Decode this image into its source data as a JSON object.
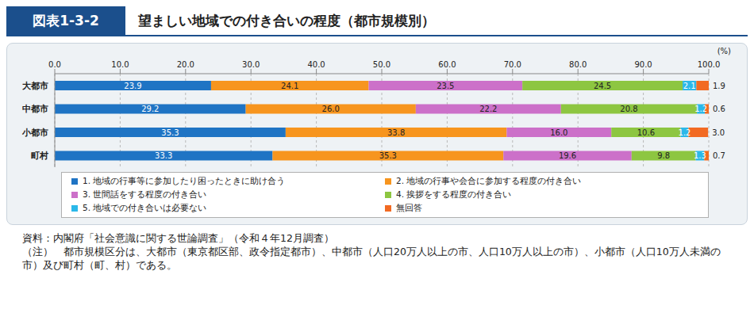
{
  "figure_number": "図表1-3-2",
  "chart_data": {
    "type": "bar",
    "title": "望ましい地域での付き合いの程度（都市規模別）",
    "orientation": "horizontal",
    "stacked": true,
    "data_labels": true,
    "grid": true,
    "legend": "bottom",
    "xlabel": "(%)",
    "categories": [
      "大都市",
      "中都市",
      "小都市",
      "町村"
    ],
    "xlim": [
      0,
      100
    ],
    "xticks": [
      {
        "value": 0,
        "label": "0.0"
      },
      {
        "value": 10,
        "label": "10.0"
      },
      {
        "value": 20,
        "label": "20.0"
      },
      {
        "value": 30,
        "label": "30.0"
      },
      {
        "value": 40,
        "label": "40.0"
      },
      {
        "value": 50,
        "label": "50.0"
      },
      {
        "value": 60,
        "label": "60.0"
      },
      {
        "value": 70,
        "label": "70.0"
      },
      {
        "value": 80,
        "label": "80.0"
      },
      {
        "value": 90,
        "label": "90.0"
      },
      {
        "value": 100,
        "label": "100.0"
      }
    ],
    "series": [
      {
        "name": "1. 地域の行事等に参加したり困ったときに助け合う",
        "color": "#1f74c4",
        "values": [
          23.9,
          29.2,
          35.3,
          33.3
        ],
        "value_labels": [
          "23.9",
          "29.2",
          "35.3",
          "33.3"
        ]
      },
      {
        "name": "2. 地域の行事や会合に参加する程度の付き合い",
        "color": "#f7951e",
        "values": [
          24.1,
          26.0,
          33.8,
          35.3
        ],
        "value_labels": [
          "24.1",
          "26.0",
          "33.8",
          "35.3"
        ]
      },
      {
        "name": "3. 世間話をする程度の付き合い",
        "color": "#cc70c9",
        "values": [
          23.5,
          22.2,
          16.0,
          19.6
        ],
        "value_labels": [
          "23.5",
          "22.2",
          "16.0",
          "19.6"
        ]
      },
      {
        "name": "4. 挨拶をする程度の付き合い",
        "color": "#8dc641",
        "values": [
          24.5,
          20.8,
          10.6,
          9.8
        ],
        "value_labels": [
          "24.5",
          "20.8",
          "10.6",
          "9.8"
        ]
      },
      {
        "name": "5. 地域での付き合いは必要ない",
        "color": "#2bb8e9",
        "values": [
          2.1,
          1.2,
          1.2,
          1.3
        ],
        "value_labels": [
          "2.1",
          "1.2",
          "1.2",
          "1.3"
        ]
      },
      {
        "name": "無回答",
        "color": "#f26a22",
        "values": [
          1.9,
          0.6,
          3.0,
          0.7
        ],
        "value_labels": [
          "1.9",
          "0.6",
          "3.0",
          "0.7"
        ]
      }
    ]
  },
  "source": "資料：内閣府「社会意識に関する世論調査」（令和４年12月調査）",
  "note": "（注）　都市規模区分は、大都市（東京都区部、政令指定都市）、中都市（人口20万人以上の市、人口10万人以上の市）、小都市（人口10万人未満の市）及び町村（町、村）である。"
}
